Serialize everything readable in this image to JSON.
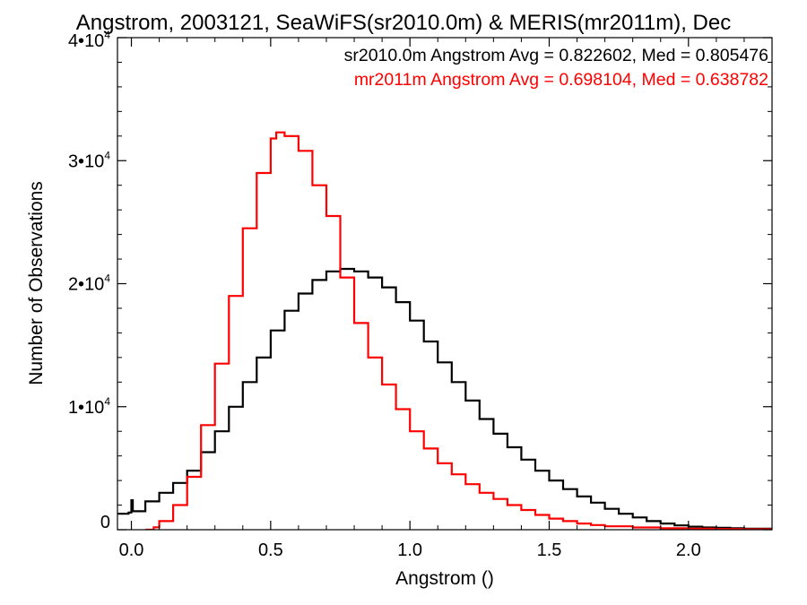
{
  "chart_data": {
    "type": "line",
    "title": "Angstrom, 2003121, SeaWiFS(sr2010.0m) & MERIS(mr2011m), Dec",
    "xlabel": "Angstrom ()",
    "ylabel": "Number of Observations",
    "xlim": [
      -0.05,
      2.3
    ],
    "ylim": [
      0,
      40000
    ],
    "x_ticks": [
      0.0,
      0.5,
      1.0,
      1.5,
      2.0
    ],
    "x_tick_labels": [
      "0.0",
      "0.5",
      "1.0",
      "1.5",
      "2.0"
    ],
    "y_ticks": [
      {
        "value": 0,
        "mantissa": "0",
        "exponent": ""
      },
      {
        "value": 10000,
        "mantissa": "1•10",
        "exponent": "4"
      },
      {
        "value": 20000,
        "mantissa": "2•10",
        "exponent": "4"
      },
      {
        "value": 30000,
        "mantissa": "3•10",
        "exponent": "4"
      },
      {
        "value": 40000,
        "mantissa": "4•10",
        "exponent": "4"
      }
    ],
    "grid": false,
    "legend_placement": "top-right",
    "series": [
      {
        "name": "sr2010.0m Angstrom Avg = 0.822602, Med = 0.805476",
        "color": "#000000",
        "style": "step",
        "points": [
          [
            -0.05,
            1300
          ],
          [
            -0.01,
            1400
          ],
          [
            0.0,
            2400
          ],
          [
            0.005,
            1500
          ],
          [
            0.05,
            2300
          ],
          [
            0.1,
            3000
          ],
          [
            0.15,
            3800
          ],
          [
            0.2,
            4800
          ],
          [
            0.25,
            6300
          ],
          [
            0.3,
            8000
          ],
          [
            0.35,
            10000
          ],
          [
            0.4,
            12000
          ],
          [
            0.45,
            14000
          ],
          [
            0.5,
            16200
          ],
          [
            0.55,
            17800
          ],
          [
            0.6,
            19200
          ],
          [
            0.65,
            20300
          ],
          [
            0.7,
            21000
          ],
          [
            0.75,
            21200
          ],
          [
            0.8,
            21000
          ],
          [
            0.85,
            20500
          ],
          [
            0.9,
            19700
          ],
          [
            0.95,
            18500
          ],
          [
            1.0,
            17000
          ],
          [
            1.05,
            15300
          ],
          [
            1.1,
            13600
          ],
          [
            1.15,
            12000
          ],
          [
            1.2,
            10500
          ],
          [
            1.25,
            9000
          ],
          [
            1.3,
            7800
          ],
          [
            1.35,
            6700
          ],
          [
            1.4,
            5700
          ],
          [
            1.45,
            4800
          ],
          [
            1.5,
            4000
          ],
          [
            1.55,
            3300
          ],
          [
            1.6,
            2700
          ],
          [
            1.65,
            2200
          ],
          [
            1.7,
            1700
          ],
          [
            1.75,
            1300
          ],
          [
            1.8,
            1000
          ],
          [
            1.85,
            700
          ],
          [
            1.9,
            500
          ],
          [
            1.95,
            350
          ],
          [
            2.0,
            250
          ],
          [
            2.05,
            180
          ],
          [
            2.1,
            150
          ],
          [
            2.15,
            120
          ],
          [
            2.2,
            80
          ],
          [
            2.3,
            50
          ]
        ]
      },
      {
        "name": "mr2011m Angstrom Avg = 0.698104, Med = 0.638782",
        "color": "#ff0000",
        "style": "step",
        "points": [
          [
            0.05,
            0
          ],
          [
            0.08,
            200
          ],
          [
            0.1,
            700
          ],
          [
            0.15,
            2000
          ],
          [
            0.2,
            4300
          ],
          [
            0.25,
            8500
          ],
          [
            0.3,
            13500
          ],
          [
            0.35,
            19000
          ],
          [
            0.4,
            24500
          ],
          [
            0.45,
            29000
          ],
          [
            0.5,
            31800
          ],
          [
            0.52,
            32300
          ],
          [
            0.55,
            32000
          ],
          [
            0.6,
            30800
          ],
          [
            0.65,
            28000
          ],
          [
            0.7,
            25500
          ],
          [
            0.75,
            20500
          ],
          [
            0.8,
            16800
          ],
          [
            0.85,
            14000
          ],
          [
            0.9,
            11800
          ],
          [
            0.95,
            9800
          ],
          [
            1.0,
            8000
          ],
          [
            1.05,
            6600
          ],
          [
            1.1,
            5400
          ],
          [
            1.15,
            4500
          ],
          [
            1.2,
            3700
          ],
          [
            1.25,
            3000
          ],
          [
            1.3,
            2500
          ],
          [
            1.35,
            2000
          ],
          [
            1.4,
            1600
          ],
          [
            1.45,
            1200
          ],
          [
            1.5,
            900
          ],
          [
            1.55,
            700
          ],
          [
            1.6,
            500
          ],
          [
            1.65,
            380
          ],
          [
            1.7,
            280
          ],
          [
            1.8,
            180
          ],
          [
            1.9,
            120
          ],
          [
            2.0,
            80
          ],
          [
            2.1,
            60
          ],
          [
            2.2,
            40
          ],
          [
            2.3,
            30
          ]
        ]
      }
    ]
  }
}
